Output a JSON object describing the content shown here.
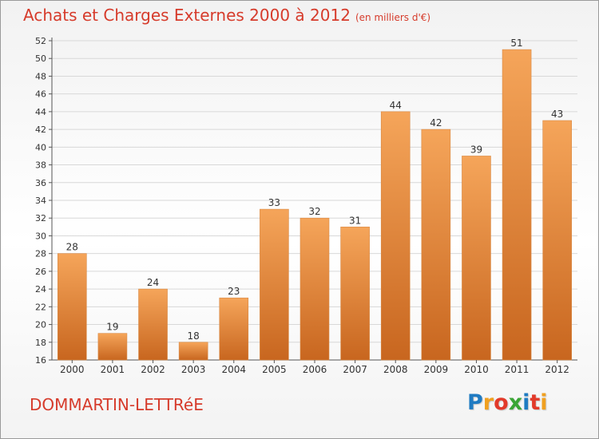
{
  "header": {
    "title": "Achats et Charges Externes 2000 à 2012",
    "unit": "(en milliers d'€)"
  },
  "footer": {
    "town": "DOMMARTIN-LETTRéE",
    "logo": {
      "letters": [
        "P",
        "r",
        "o",
        "x",
        "i",
        "t",
        "i"
      ],
      "colors": [
        "#1f7bc2",
        "#f0a020",
        "#e23a2a",
        "#3aa535",
        "#1f7bc2",
        "#e23a2a",
        "#f0a020"
      ]
    }
  },
  "colors": {
    "bar_top": "#f5a55a",
    "bar_bottom": "#c8661f",
    "title": "#d63b2b",
    "grid": "#d8d8d8",
    "axis": "#555555"
  },
  "chart_data": {
    "type": "bar",
    "title": "Achats et Charges Externes 2000 à 2012",
    "subtitle": "(en milliers d'€)",
    "categories": [
      "2000",
      "2001",
      "2002",
      "2003",
      "2004",
      "2005",
      "2006",
      "2007",
      "2008",
      "2009",
      "2010",
      "2011",
      "2012"
    ],
    "values": [
      28,
      19,
      24,
      18,
      23,
      33,
      32,
      31,
      44,
      42,
      39,
      51,
      43
    ],
    "ylim": [
      16,
      52
    ],
    "yticks": [
      16,
      18,
      20,
      22,
      24,
      26,
      28,
      30,
      32,
      34,
      36,
      38,
      40,
      42,
      44,
      46,
      48,
      50,
      52
    ],
    "grid": true,
    "data_labels": true
  }
}
